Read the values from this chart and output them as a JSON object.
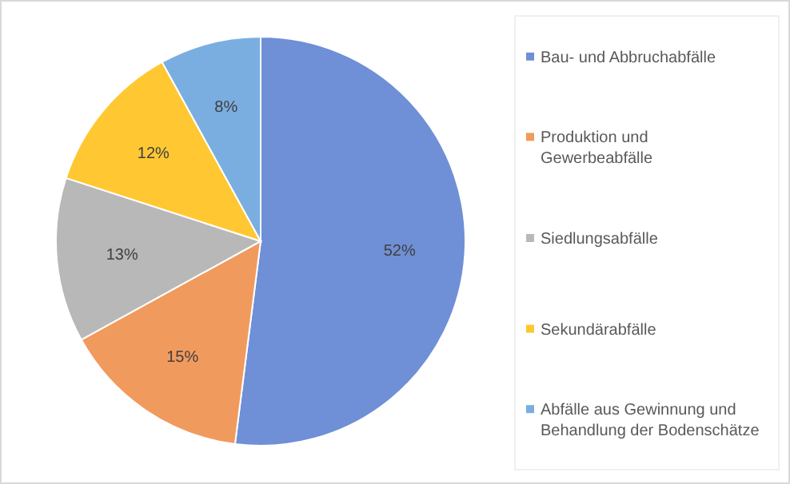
{
  "chart_data": {
    "type": "pie",
    "categories": [
      "Bau- und Abbruchabfälle",
      "Produktion und Gewerbeabfälle",
      "Siedlungsabfälle",
      "Sekundärabfälle",
      "Abfälle aus Gewinnung und Behandlung der Bodenschätze"
    ],
    "values": [
      52,
      15,
      13,
      12,
      8
    ],
    "colors": [
      "#6f8fd6",
      "#f19a5e",
      "#b8b8b8",
      "#ffc832",
      "#7aaee0"
    ],
    "value_labels": [
      "52%",
      "15%",
      "13%",
      "12%",
      "8%"
    ],
    "legend": "right"
  }
}
